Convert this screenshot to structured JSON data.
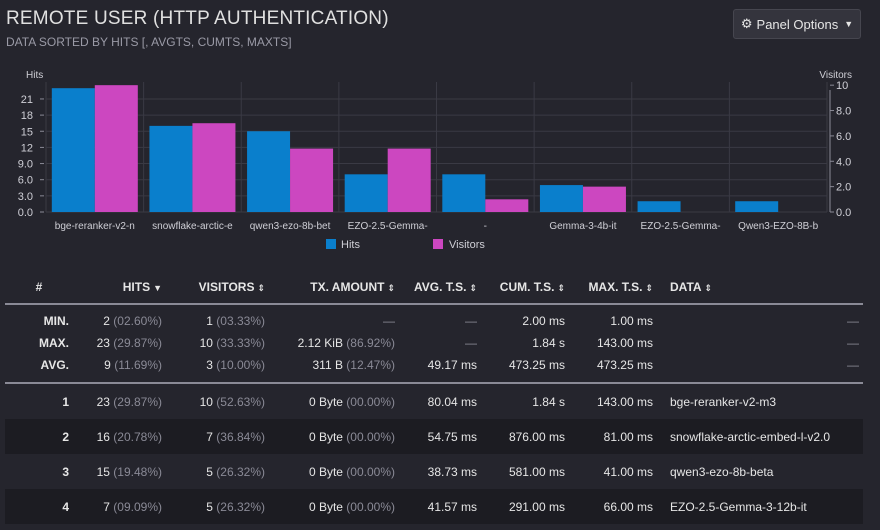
{
  "panel": {
    "title": "REMOTE USER (HTTP AUTHENTICATION)",
    "subtitle": "DATA SORTED BY HITS [, AVGTS, CUMTS, MAXTS]",
    "options_label": "Panel Options",
    "options_icon": "gear-icon"
  },
  "chart_data": {
    "type": "bar",
    "categories": [
      "bge-reranker-v2-m3",
      "snowflake-arctic-embed-l-v2.0",
      "qwen3-ezo-8b-beta",
      "EZO-2.5-Gemma-3-12b-it",
      "-",
      "Gemma-3-4b-it",
      "EZO-2.5-Gemma-3-12b-it",
      "Qwen3-EZO-8B-beta"
    ],
    "tick_labels": [
      "bge-reranker-v2-n",
      "snowflake-arctic-e",
      "qwen3-ezo-8b-bet",
      "EZO-2.5-Gemma-",
      "-",
      "Gemma-3-4b-it",
      "EZO-2.5-Gemma-",
      "Qwen3-EZO-8B-b"
    ],
    "series": [
      {
        "name": "Hits",
        "axis": "left",
        "color": "#0a7fcc",
        "values": [
          23,
          16,
          15,
          7,
          7,
          5,
          2,
          2
        ]
      },
      {
        "name": "Visitors",
        "axis": "right",
        "color": "#cc47c0",
        "values": [
          10,
          7,
          5,
          5,
          1,
          2,
          0,
          0
        ]
      }
    ],
    "left_axis": {
      "label": "Hits",
      "ticks": [
        "0.0",
        "3.0",
        "6.0",
        "9.0",
        "12",
        "15",
        "18",
        "21"
      ],
      "max": 24.15
    },
    "right_axis": {
      "label": "Visitors",
      "ticks": [
        "0.0",
        "2.0",
        "4.0",
        "6.0",
        "8.0",
        "10"
      ],
      "max": 10.25
    },
    "legend": "bottom-center",
    "grid": true
  },
  "table": {
    "headers": {
      "idx": "#",
      "hits": "HITS",
      "visitors": "VISITORS",
      "tx": "TX. AMOUNT",
      "avg": "AVG. T.S.",
      "cum": "CUM. T.S.",
      "max": "MAX. T.S.",
      "data": "DATA"
    },
    "aggregates": [
      {
        "label": "MIN.",
        "hits": "2",
        "hits_pct": "(02.60%)",
        "visitors": "1",
        "visitors_pct": "(03.33%)",
        "tx": "—",
        "tx_pct": "",
        "avg": "—",
        "cum": "2.00 ms",
        "max": "1.00 ms",
        "data": "—"
      },
      {
        "label": "MAX.",
        "hits": "23",
        "hits_pct": "(29.87%)",
        "visitors": "10",
        "visitors_pct": "(33.33%)",
        "tx": "2.12 KiB",
        "tx_pct": "(86.92%)",
        "avg": "—",
        "cum": "1.84 s",
        "max": "143.00 ms",
        "data": "—"
      },
      {
        "label": "AVG.",
        "hits": "9",
        "hits_pct": "(11.69%)",
        "visitors": "3",
        "visitors_pct": "(10.00%)",
        "tx": "311 B",
        "tx_pct": "(12.47%)",
        "avg": "49.17 ms",
        "cum": "473.25 ms",
        "max": "473.25 ms",
        "data": "—"
      }
    ],
    "rows": [
      {
        "idx": "1",
        "hits": "23",
        "hits_pct": "(29.87%)",
        "visitors": "10",
        "visitors_pct": "(52.63%)",
        "tx": "0 Byte",
        "tx_pct": "(00.00%)",
        "avg": "80.04 ms",
        "cum": "1.84 s",
        "max": "143.00 ms",
        "data": "bge-reranker-v2-m3"
      },
      {
        "idx": "2",
        "hits": "16",
        "hits_pct": "(20.78%)",
        "visitors": "7",
        "visitors_pct": "(36.84%)",
        "tx": "0 Byte",
        "tx_pct": "(00.00%)",
        "avg": "54.75 ms",
        "cum": "876.00 ms",
        "max": "81.00 ms",
        "data": "snowflake-arctic-embed-l-v2.0"
      },
      {
        "idx": "3",
        "hits": "15",
        "hits_pct": "(19.48%)",
        "visitors": "5",
        "visitors_pct": "(26.32%)",
        "tx": "0 Byte",
        "tx_pct": "(00.00%)",
        "avg": "38.73 ms",
        "cum": "581.00 ms",
        "max": "41.00 ms",
        "data": "qwen3-ezo-8b-beta"
      },
      {
        "idx": "4",
        "hits": "7",
        "hits_pct": "(09.09%)",
        "visitors": "5",
        "visitors_pct": "(26.32%)",
        "tx": "0 Byte",
        "tx_pct": "(00.00%)",
        "avg": "41.57 ms",
        "cum": "291.00 ms",
        "max": "66.00 ms",
        "data": "EZO-2.5-Gemma-3-12b-it"
      }
    ]
  }
}
